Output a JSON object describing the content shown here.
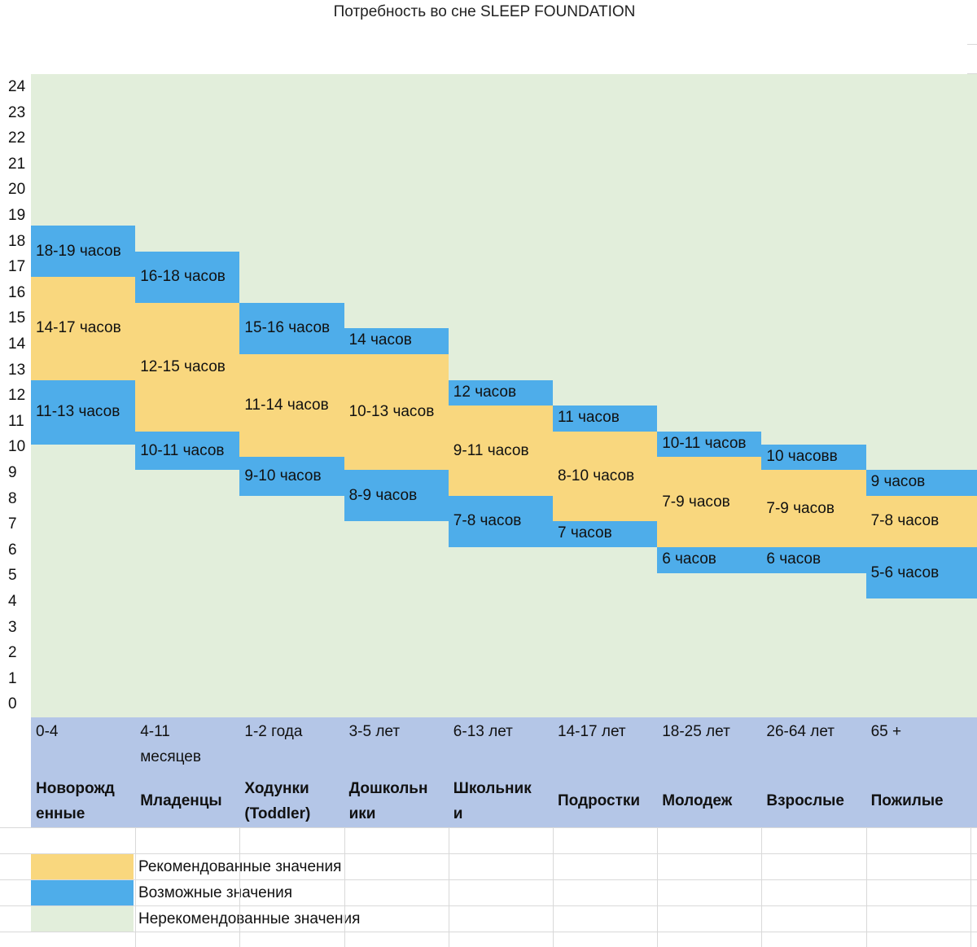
{
  "chart_data": {
    "type": "table",
    "title": "Потребность во сне SLEEP FOUNDATION",
    "ylim": [
      0,
      24
    ],
    "yticks": [
      "24",
      "23",
      "22",
      "21",
      "20",
      "19",
      "18",
      "17",
      "16",
      "15",
      "14",
      "13",
      "12",
      "11",
      "10",
      "9",
      "8",
      "7",
      "6",
      "5",
      "4",
      "3",
      "2",
      "1",
      "0"
    ],
    "columns": [
      {
        "age": "0-4",
        "group": "Новорожд\nенные",
        "bands": [
          {
            "kind": "possible",
            "from": 17,
            "to": 19,
            "label": "18-19 часов"
          },
          {
            "kind": "recommended",
            "from": 13,
            "to": 17,
            "label": "14-17 часов"
          },
          {
            "kind": "possible",
            "from": 10.5,
            "to": 13,
            "label": "11-13 часов"
          }
        ]
      },
      {
        "age": "4-11\nмесяцев",
        "group": "Младенцы",
        "bands": [
          {
            "kind": "possible",
            "from": 16,
            "to": 18,
            "label": "16-18 часов"
          },
          {
            "kind": "recommended",
            "from": 11,
            "to": 16,
            "label": "12-15 часов"
          },
          {
            "kind": "possible",
            "from": 9.5,
            "to": 11,
            "label": "10-11 часов"
          }
        ]
      },
      {
        "age": "1-2 года",
        "group": "Ходунки\n(Toddler)",
        "bands": [
          {
            "kind": "possible",
            "from": 14,
            "to": 16,
            "label": "15-16 часов"
          },
          {
            "kind": "recommended",
            "from": 10,
            "to": 14,
            "label": "11-14 часов"
          },
          {
            "kind": "possible",
            "from": 8.5,
            "to": 10,
            "label": "9-10 часов"
          }
        ]
      },
      {
        "age": "3-5 лет",
        "group": "Дошкольн\nики",
        "bands": [
          {
            "kind": "possible",
            "from": 14,
            "to": 15,
            "label": "14 часов"
          },
          {
            "kind": "recommended",
            "from": 9.5,
            "to": 14,
            "label": "10-13 часов"
          },
          {
            "kind": "possible",
            "from": 7.5,
            "to": 9.5,
            "label": "8-9 часов"
          }
        ]
      },
      {
        "age": "6-13 лет",
        "group": "Школьник\nи",
        "bands": [
          {
            "kind": "possible",
            "from": 12,
            "to": 13,
            "label": "12 часов"
          },
          {
            "kind": "recommended",
            "from": 8.5,
            "to": 12,
            "label": "9-11 часов"
          },
          {
            "kind": "possible",
            "from": 6.5,
            "to": 8.5,
            "label": "7-8 часов"
          }
        ]
      },
      {
        "age": "14-17 лет",
        "group": "Подростки",
        "bands": [
          {
            "kind": "possible",
            "from": 11,
            "to": 12,
            "label": "11 часов"
          },
          {
            "kind": "recommended",
            "from": 7.5,
            "to": 11,
            "label": "8-10 часов"
          },
          {
            "kind": "possible",
            "from": 6.5,
            "to": 7.5,
            "label": "7 часов"
          }
        ]
      },
      {
        "age": "18-25 лет",
        "group": "Молодеж",
        "bands": [
          {
            "kind": "possible",
            "from": 10,
            "to": 11,
            "label": "10-11 часов"
          },
          {
            "kind": "recommended",
            "from": 6.5,
            "to": 10,
            "label": "7-9 часов"
          },
          {
            "kind": "possible",
            "from": 5.5,
            "to": 6.5,
            "label": "6 часов"
          }
        ]
      },
      {
        "age": "26-64 лет",
        "group": "Взрослые",
        "bands": [
          {
            "kind": "possible",
            "from": 9.5,
            "to": 10.5,
            "label": "10 часовв"
          },
          {
            "kind": "recommended",
            "from": 6.5,
            "to": 9.5,
            "label": "7-9 часов"
          },
          {
            "kind": "possible",
            "from": 5.5,
            "to": 6.5,
            "label": "6 часов"
          }
        ]
      },
      {
        "age": "65 +",
        "group": "Пожилые",
        "bands": [
          {
            "kind": "possible",
            "from": 8.5,
            "to": 9.5,
            "label": "9 часов"
          },
          {
            "kind": "recommended",
            "from": 6.5,
            "to": 8.5,
            "label": "7-8 часов"
          },
          {
            "kind": "possible",
            "from": 4.5,
            "to": 6.5,
            "label": "5-6 часов"
          }
        ]
      }
    ],
    "legend": [
      {
        "kind": "recommended",
        "label": "Рекомендованные значения",
        "color": "#f9d77e"
      },
      {
        "kind": "possible",
        "label": "Возможные значения",
        "color": "#4eadea"
      },
      {
        "kind": "not_recommended",
        "label": "Нерекомендованные значения",
        "color": "#e2eedb"
      }
    ],
    "colors": {
      "recommended": "#f9d77e",
      "possible": "#4eadea",
      "not_recommended": "#e2eedb",
      "age_band": "#b4c6e7"
    }
  }
}
